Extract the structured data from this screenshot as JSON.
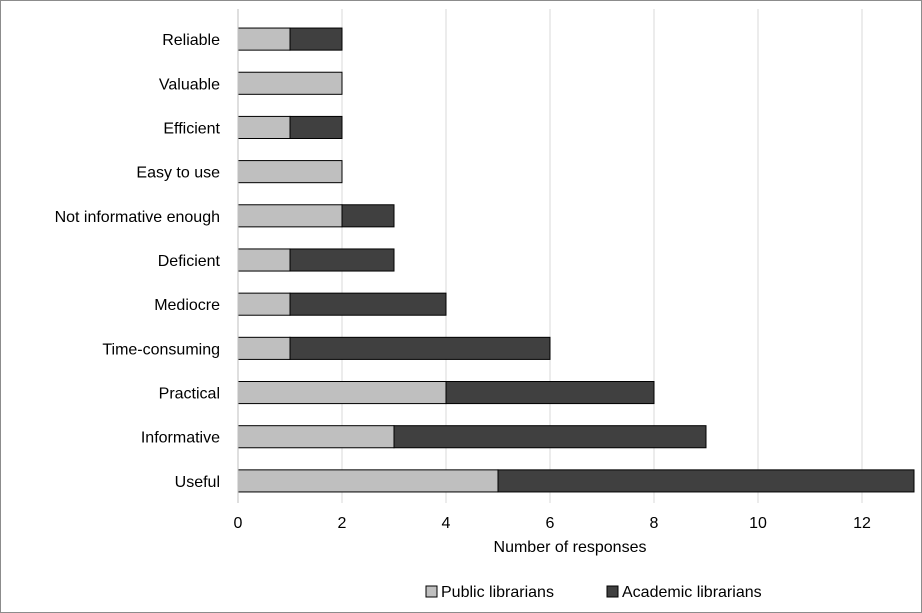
{
  "chart_data": {
    "type": "bar",
    "orientation": "horizontal",
    "stacked": true,
    "categories": [
      "Reliable",
      "Valuable",
      "Efficient",
      "Easy to use",
      "Not informative enough",
      "Deficient",
      "Mediocre",
      "Time-consuming",
      "Practical",
      "Informative",
      "Useful"
    ],
    "series": [
      {
        "name": "Public librarians",
        "color": "#bfbfbf",
        "values": [
          1,
          2,
          1,
          2,
          2,
          1,
          1,
          1,
          4,
          3,
          5
        ]
      },
      {
        "name": "Academic librarians",
        "color": "#404040",
        "values": [
          1,
          0,
          1,
          0,
          1,
          2,
          3,
          5,
          4,
          6,
          8
        ]
      }
    ],
    "title": "",
    "xlabel": "Number of responses",
    "ylabel": "",
    "xlim": [
      0,
      13
    ],
    "xticks": [
      0,
      2,
      4,
      6,
      8,
      10,
      12
    ],
    "grid": "vertical",
    "legend_position": "bottom"
  }
}
